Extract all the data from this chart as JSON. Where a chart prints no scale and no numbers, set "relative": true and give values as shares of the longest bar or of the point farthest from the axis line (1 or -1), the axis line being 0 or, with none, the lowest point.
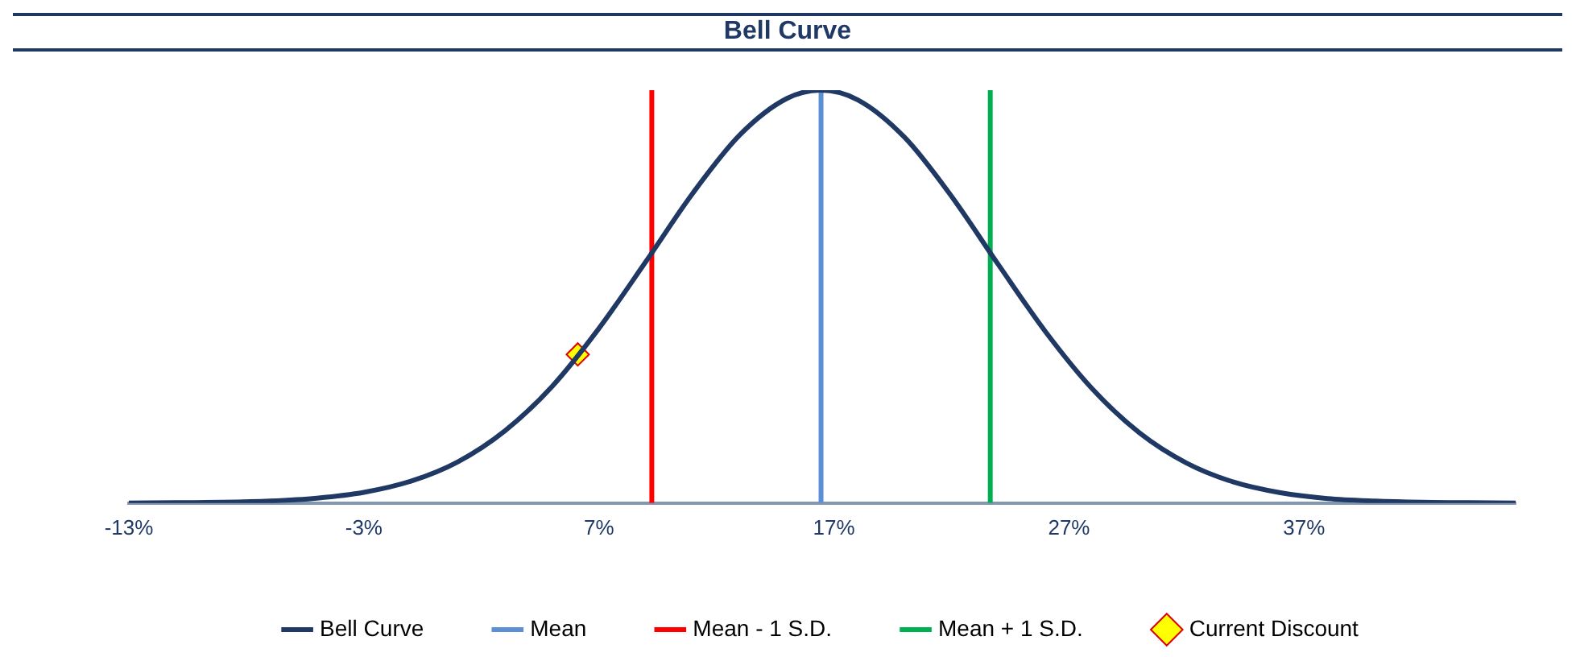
{
  "chart_data": {
    "type": "line",
    "title": "Bell Curve",
    "relative": true,
    "xlim": [
      -13,
      46
    ],
    "xticks": [
      {
        "value": -13,
        "label": "-13%"
      },
      {
        "value": -3,
        "label": "-3%"
      },
      {
        "value": 7,
        "label": "7%"
      },
      {
        "value": 17,
        "label": "17%"
      },
      {
        "value": 27,
        "label": "27%"
      },
      {
        "value": 37,
        "label": "37%"
      }
    ],
    "series": [
      {
        "name": "Bell Curve",
        "color": "#1f3864",
        "x": [
          -13,
          -11,
          -9,
          -7,
          -5,
          -3,
          -1,
          1,
          3,
          5,
          7,
          9,
          11,
          13,
          15,
          16.45,
          18,
          20,
          22,
          24,
          26,
          28,
          30,
          32,
          34,
          36,
          38,
          40,
          42,
          44,
          46
        ],
        "values": [
          0,
          0.001,
          0.002,
          0.005,
          0.012,
          0.026,
          0.053,
          0.1,
          0.175,
          0.282,
          0.423,
          0.585,
          0.751,
          0.892,
          0.98,
          1,
          0.977,
          0.886,
          0.743,
          0.577,
          0.415,
          0.276,
          0.17,
          0.097,
          0.051,
          0.025,
          0.011,
          0.005,
          0.002,
          0.001,
          0
        ]
      },
      {
        "name": "Mean",
        "color": "#5b8fd6",
        "x": [
          16.45,
          16.45
        ],
        "values": [
          0,
          1
        ]
      },
      {
        "name": "Mean - 1 S.D.",
        "color": "#ff0000",
        "x": [
          9.25,
          9.25
        ],
        "values": [
          0,
          1
        ]
      },
      {
        "name": "Mean + 1 S.D.",
        "color": "#00b050",
        "x": [
          23.65,
          23.65
        ],
        "values": [
          0,
          1
        ]
      },
      {
        "name": "Current Discount",
        "color": "#ffff00",
        "type": "scatter",
        "marker": "diamond",
        "x": [
          6.1
        ],
        "values": [
          0.36
        ]
      }
    ],
    "grid": false,
    "legend": "bottom"
  }
}
